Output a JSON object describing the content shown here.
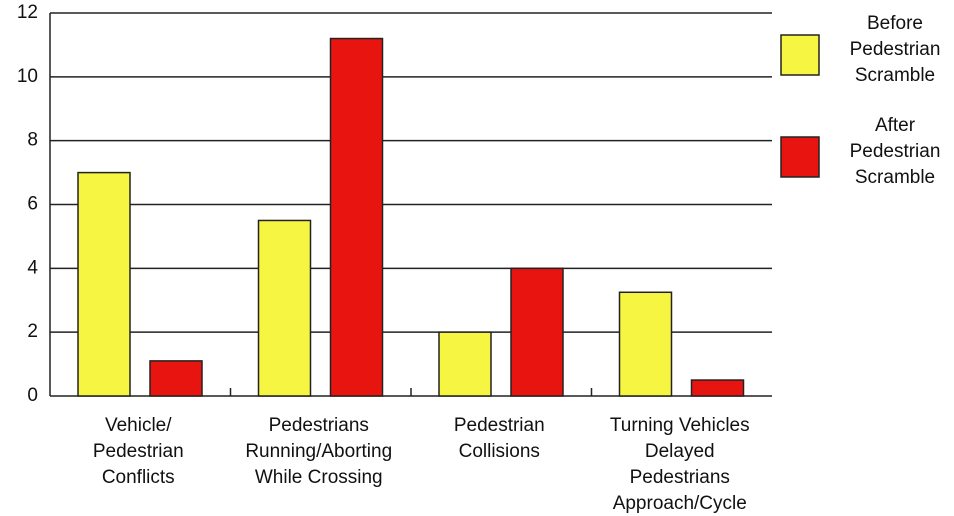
{
  "chart_data": {
    "type": "bar",
    "categories": [
      "Vehicle/\nPedestrian\nConflicts",
      "Pedestrians\nRunning/Aborting\nWhile Crossing",
      "Pedestrian\nCollisions",
      "Turning Vehicles\nDelayed\nPedestrians\nApproach/Cycle"
    ],
    "series": [
      {
        "name": "Before\nPedestrian\nScramble",
        "color": "#f5f542",
        "values": [
          7,
          5.5,
          2,
          3.25
        ]
      },
      {
        "name": "After\nPedestrian\nScramble",
        "color": "#e8140f",
        "values": [
          1.1,
          11.2,
          4,
          0.5
        ]
      }
    ],
    "ylim": [
      0,
      12
    ],
    "yticks": [
      0,
      2,
      4,
      6,
      8,
      10,
      12
    ],
    "grid": true,
    "legend": "right"
  }
}
